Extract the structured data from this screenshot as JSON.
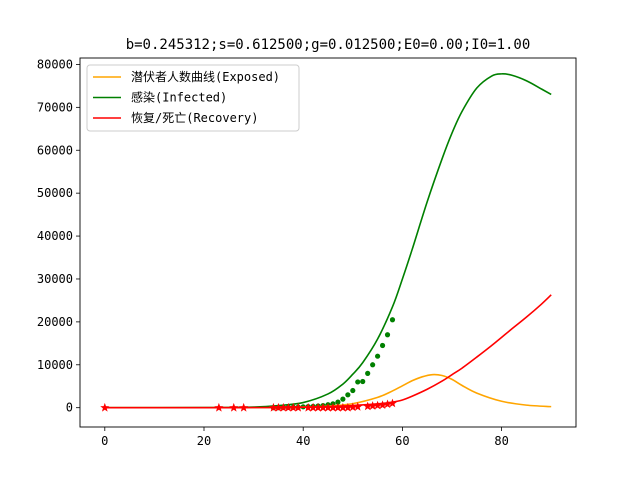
{
  "chart_data": {
    "type": "line",
    "title": "b=0.245312;s=0.612500;g=0.012500;E0=0.00;I0=1.00",
    "xlabel": "",
    "ylabel": "",
    "xlim": [
      -5,
      95
    ],
    "ylim": [
      -4500,
      81500
    ],
    "xticks": [
      0,
      20,
      40,
      60,
      80
    ],
    "yticks": [
      0,
      10000,
      20000,
      30000,
      40000,
      50000,
      60000,
      70000,
      80000
    ],
    "grid": false,
    "legend_position": "top-left",
    "series": [
      {
        "name": "潜伏者人数曲线(Exposed)",
        "color": "#FFA500",
        "x": [
          0,
          20,
          30,
          35,
          40,
          45,
          50,
          55,
          58,
          60,
          62,
          64,
          66,
          68,
          70,
          72,
          75,
          80,
          85,
          90
        ],
        "y": [
          0,
          5,
          30,
          80,
          150,
          350,
          950,
          2400,
          3900,
          5100,
          6300,
          7200,
          7700,
          7500,
          6600,
          5200,
          3400,
          1500,
          600,
          250
        ]
      },
      {
        "name": "感染(Infected)",
        "color": "#008000",
        "x": [
          0,
          20,
          30,
          35,
          40,
          45,
          48,
          50,
          52,
          55,
          58,
          60,
          62,
          65,
          68,
          70,
          72,
          75,
          78,
          80,
          82,
          85,
          88,
          90
        ],
        "y": [
          0,
          20,
          150,
          500,
          1200,
          3200,
          5500,
          7800,
          10500,
          16000,
          23500,
          30000,
          37000,
          48000,
          58000,
          64000,
          69000,
          74500,
          77300,
          77800,
          77500,
          76200,
          74300,
          73000
        ]
      },
      {
        "name": "恢复/死亡(Recovery)",
        "color": "#FF0000",
        "x": [
          0,
          20,
          30,
          40,
          45,
          50,
          55,
          58,
          60,
          62,
          65,
          68,
          70,
          72,
          75,
          78,
          80,
          82,
          85,
          88,
          90
        ],
        "y": [
          0,
          5,
          20,
          100,
          250,
          500,
          900,
          1300,
          1800,
          2700,
          4300,
          6200,
          7700,
          9200,
          11800,
          14500,
          16400,
          18300,
          21100,
          24100,
          26300
        ]
      }
    ],
    "observed_infected": {
      "marker": "dot",
      "color": "#008000",
      "x": [
        34,
        35,
        36,
        37,
        38,
        39,
        40,
        41,
        42,
        43,
        44,
        45,
        46,
        47,
        48,
        49,
        50,
        51,
        52,
        53,
        54,
        55,
        56,
        57,
        58
      ],
      "y": [
        0,
        0,
        50,
        80,
        100,
        130,
        200,
        250,
        300,
        400,
        500,
        700,
        900,
        1300,
        2000,
        3000,
        4000,
        6000,
        6100,
        8000,
        10000,
        12000,
        14500,
        17000,
        20500
      ]
    },
    "observed_recovery": {
      "marker": "star",
      "color": "#FF0000",
      "x": [
        0,
        23,
        26,
        28,
        34,
        35,
        36,
        37,
        38,
        39,
        41,
        42,
        43,
        44,
        45,
        46,
        47,
        48,
        49,
        50,
        51,
        53,
        54,
        55,
        56,
        57,
        58
      ],
      "y": [
        0,
        0,
        0,
        0,
        0,
        0,
        0,
        0,
        0,
        0,
        0,
        0,
        0,
        0,
        0,
        0,
        0,
        0,
        0,
        100,
        200,
        300,
        400,
        500,
        600,
        800,
        1000
      ]
    }
  }
}
